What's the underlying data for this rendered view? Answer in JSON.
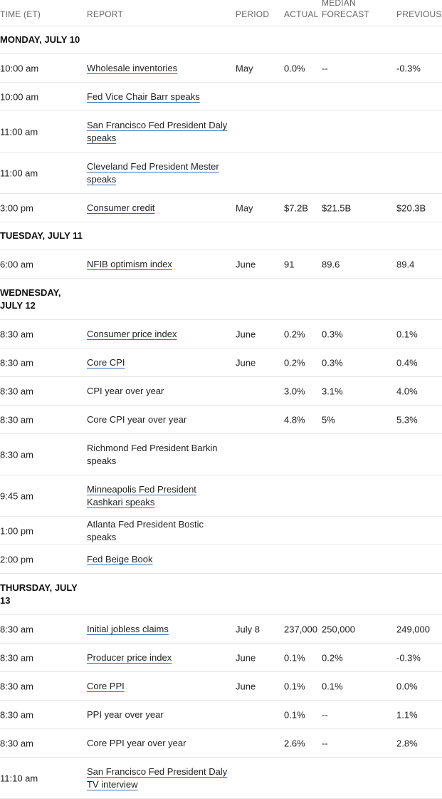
{
  "columns": {
    "time": "TIME (ET)",
    "report": "REPORT",
    "period": "PERIOD",
    "actual": "ACTUAL",
    "median": "MEDIAN",
    "forecast": "FORECAST",
    "previous": "PREVIOUS"
  },
  "rows": [
    {
      "type": "day",
      "label": "MONDAY, JULY 10"
    },
    {
      "type": "event",
      "time": "10:00 am",
      "report": "Wholesale inventories",
      "link": true,
      "period": "May",
      "actual": "0.0%",
      "forecast": "--",
      "previous": "-0.3%"
    },
    {
      "type": "event",
      "time": "10:00 am",
      "report": "Fed Vice Chair Barr speaks",
      "link": true,
      "period": "",
      "actual": "",
      "forecast": "",
      "previous": ""
    },
    {
      "type": "event",
      "time": "11:00 am",
      "report": "San Francisco Fed President Daly speaks",
      "link": true,
      "period": "",
      "actual": "",
      "forecast": "",
      "previous": ""
    },
    {
      "type": "event",
      "time": "11:00 am",
      "report": "Cleveland Fed President Mester speaks",
      "link": true,
      "period": "",
      "actual": "",
      "forecast": "",
      "previous": ""
    },
    {
      "type": "event",
      "time": "3:00 pm",
      "report": "Consumer credit",
      "link": true,
      "period": "May",
      "actual": "$7.2B",
      "forecast": "$21.5B",
      "previous": "$20.3B"
    },
    {
      "type": "day",
      "label": "TUESDAY, JULY 11"
    },
    {
      "type": "event",
      "time": "6:00 am",
      "report": "NFIB optimism index",
      "link": true,
      "period": "June",
      "actual": "91",
      "forecast": "89.6",
      "previous": "89.4"
    },
    {
      "type": "day",
      "label": "WEDNESDAY, JULY 12"
    },
    {
      "type": "event",
      "time": "8:30 am",
      "report": "Consumer price index",
      "link": true,
      "period": "June",
      "actual": "0.2%",
      "forecast": "0.3%",
      "previous": "0.1%"
    },
    {
      "type": "event",
      "time": "8:30 am",
      "report": "Core CPI",
      "link": true,
      "period": "June",
      "actual": "0.2%",
      "forecast": "0.3%",
      "previous": "0.4%"
    },
    {
      "type": "event",
      "time": "8:30 am",
      "report": "CPI year over year",
      "link": false,
      "period": "",
      "actual": "3.0%",
      "forecast": "3.1%",
      "previous": "4.0%"
    },
    {
      "type": "event",
      "time": "8:30 am",
      "report": "Core CPI year over year",
      "link": false,
      "period": "",
      "actual": "4.8%",
      "forecast": "5%",
      "previous": "5.3%"
    },
    {
      "type": "event",
      "time": "8:30 am",
      "report": "Richmond Fed President Barkin speaks",
      "link": false,
      "period": "",
      "actual": "",
      "forecast": "",
      "previous": ""
    },
    {
      "type": "event",
      "time": "9:45 am",
      "report": "Minneapolis Fed President Kashkari speaks",
      "link": true,
      "period": "",
      "actual": "",
      "forecast": "",
      "previous": ""
    },
    {
      "type": "event",
      "time": "1:00 pm",
      "report": "Atlanta Fed President Bostic speaks",
      "link": false,
      "period": "",
      "actual": "",
      "forecast": "",
      "previous": ""
    },
    {
      "type": "event",
      "time": "2:00 pm",
      "report": "Fed Beige Book",
      "link": true,
      "period": "",
      "actual": "",
      "forecast": "",
      "previous": ""
    },
    {
      "type": "day",
      "label": "THURSDAY, JULY 13"
    },
    {
      "type": "event",
      "time": "8:30 am",
      "report": "Initial jobless claims",
      "link": true,
      "period": "July 8",
      "actual": "237,000",
      "forecast": "250,000",
      "previous": "249,000"
    },
    {
      "type": "event",
      "time": "8:30 am",
      "report": "Producer price index",
      "link": true,
      "period": "June",
      "actual": "0.1%",
      "forecast": "0.2%",
      "previous": "-0.3%"
    },
    {
      "type": "event",
      "time": "8:30 am",
      "report": "Core PPI",
      "link": true,
      "period": "June",
      "actual": "0.1%",
      "forecast": "0.1%",
      "previous": "0.0%"
    },
    {
      "type": "event",
      "time": "8:30 am",
      "report": "PPI year over year",
      "link": false,
      "period": "",
      "actual": "0.1%",
      "forecast": "--",
      "previous": "1.1%"
    },
    {
      "type": "event",
      "time": "8:30 am",
      "report": "Core PPI year over year",
      "link": false,
      "period": "",
      "actual": "2.6%",
      "forecast": "--",
      "previous": "2.8%"
    },
    {
      "type": "event",
      "time": "11:10 am",
      "report": "San Francisco Fed President Daly TV interview",
      "link": true,
      "period": "",
      "actual": "",
      "forecast": "",
      "previous": ""
    }
  ]
}
